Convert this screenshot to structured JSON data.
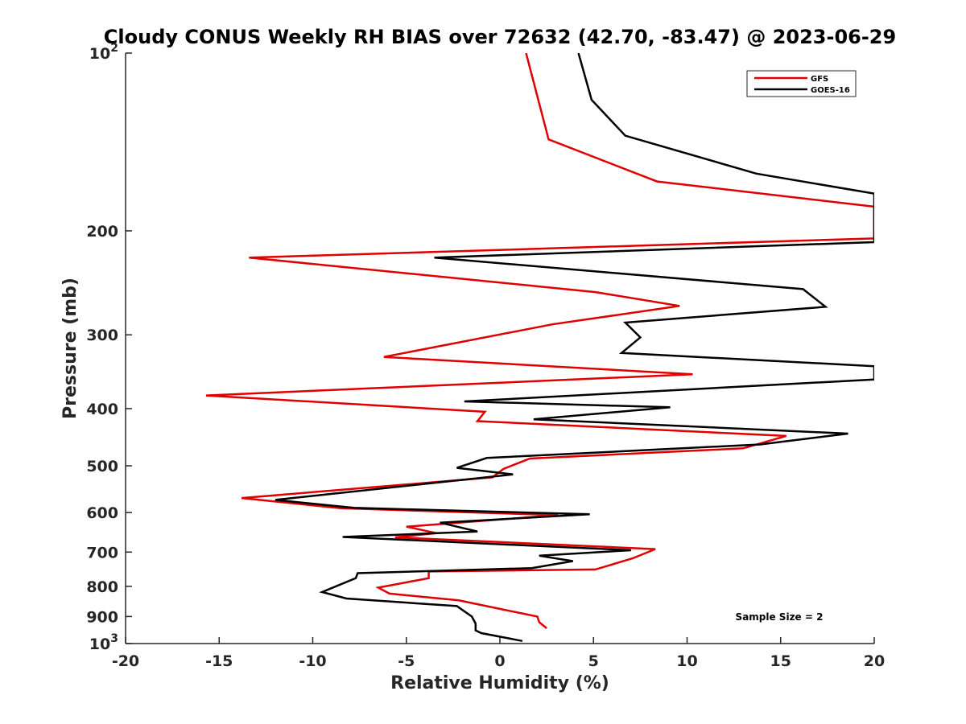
{
  "chart_data": {
    "type": "line",
    "title": "Cloudy CONUS Weekly RH BIAS over 72632 (42.70, -83.47) @ 2023-06-29",
    "xlabel": "Relative Humidity (%)",
    "ylabel": "Pressure (mb)",
    "xlim": [
      -20,
      20
    ],
    "ylim": [
      100,
      1000
    ],
    "y_scale": "log",
    "y_reversed": true,
    "x_ticks": [
      "-20",
      "-15",
      "-10",
      "-5",
      "0",
      "5",
      "10",
      "15",
      "20"
    ],
    "y_ticks": [
      {
        "value": 100,
        "base": "10",
        "exp": "2"
      },
      {
        "value": 200,
        "label": "200"
      },
      {
        "value": 300,
        "label": "300"
      },
      {
        "value": 400,
        "label": "400"
      },
      {
        "value": 500,
        "label": "500"
      },
      {
        "value": 600,
        "label": "600"
      },
      {
        "value": 700,
        "label": "700"
      },
      {
        "value": 800,
        "label": "800"
      },
      {
        "value": 900,
        "label": "900"
      },
      {
        "value": 1000,
        "base": "10",
        "exp": "3"
      }
    ],
    "legend_position": "top-right",
    "grid": false,
    "annotation": "Sample Size = 2",
    "series": [
      {
        "name": "GFS",
        "color": "#e00000",
        "points": [
          [
            1.4,
            100
          ],
          [
            2.6,
            140
          ],
          [
            8.4,
            165
          ],
          [
            20,
            182
          ],
          [
            20,
            206
          ],
          [
            -13.4,
            222
          ],
          [
            5.1,
            254
          ],
          [
            9.6,
            268
          ],
          [
            2.8,
            288
          ],
          [
            -6.2,
            327
          ],
          [
            10.3,
            350
          ],
          [
            -15.7,
            380
          ],
          [
            -0.8,
            405
          ],
          [
            -1.2,
            420
          ],
          [
            15.3,
            445
          ],
          [
            13.0,
            467
          ],
          [
            1.6,
            486
          ],
          [
            0.2,
            506
          ],
          [
            -0.4,
            523
          ],
          [
            -13.8,
            567
          ],
          [
            -8.5,
            590
          ],
          [
            3.1,
            606
          ],
          [
            -5.0,
            634
          ],
          [
            -3.4,
            650
          ],
          [
            -5.6,
            661
          ],
          [
            8.3,
            692
          ],
          [
            7.1,
            717
          ],
          [
            5.1,
            749
          ],
          [
            -3.8,
            755
          ],
          [
            -3.8,
            775
          ],
          [
            -6.5,
            804
          ],
          [
            -5.9,
            823
          ],
          [
            -2.2,
            845
          ],
          [
            0.1,
            875
          ],
          [
            2.0,
            900
          ],
          [
            2.1,
            920
          ],
          [
            2.5,
            942
          ]
        ]
      },
      {
        "name": "GOES-16",
        "color": "#000000",
        "points": [
          [
            4.2,
            100
          ],
          [
            4.9,
            120
          ],
          [
            6.7,
            138
          ],
          [
            13.7,
            160
          ],
          [
            20,
            173
          ],
          [
            20,
            209
          ],
          [
            -3.5,
            222
          ],
          [
            16.2,
            251
          ],
          [
            17.4,
            269
          ],
          [
            6.7,
            286
          ],
          [
            7.5,
            303
          ],
          [
            6.5,
            322
          ],
          [
            20,
            339
          ],
          [
            20,
            357
          ],
          [
            -1.9,
            389
          ],
          [
            9.1,
            398
          ],
          [
            1.8,
            417
          ],
          [
            18.6,
            441
          ],
          [
            13.9,
            460
          ],
          [
            -0.7,
            485
          ],
          [
            -2.3,
            504
          ],
          [
            0.7,
            517
          ],
          [
            -12.0,
            571
          ],
          [
            -7.8,
            589
          ],
          [
            4.8,
            604
          ],
          [
            -3.2,
            624
          ],
          [
            -1.2,
            646
          ],
          [
            -8.4,
            660
          ],
          [
            7.0,
            695
          ],
          [
            2.1,
            710
          ],
          [
            3.9,
            725
          ],
          [
            1.7,
            745
          ],
          [
            -7.6,
            760
          ],
          [
            -7.7,
            775
          ],
          [
            -9.5,
            818
          ],
          [
            -8.2,
            839
          ],
          [
            -2.3,
            864
          ],
          [
            -1.5,
            900
          ],
          [
            -1.3,
            925
          ],
          [
            -1.3,
            950
          ],
          [
            -1.0,
            960
          ],
          [
            1.2,
            990
          ]
        ]
      }
    ]
  }
}
